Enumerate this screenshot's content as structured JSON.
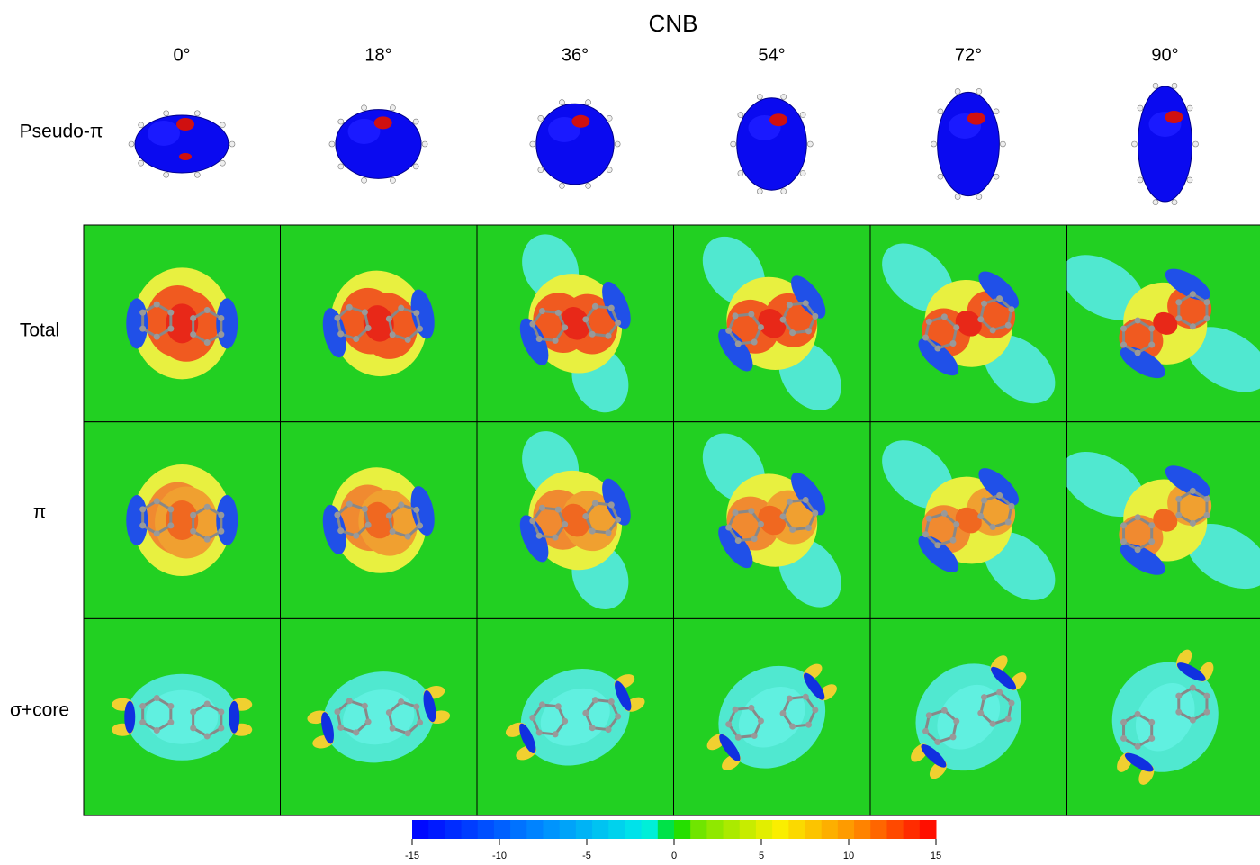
{
  "title": "CNB",
  "angles": [
    "0°",
    "18°",
    "36°",
    "54°",
    "72°",
    "90°"
  ],
  "rows": [
    "Pseudo-π",
    "Total",
    "π",
    "σ+core"
  ],
  "colorbar": {
    "lim": [
      -15,
      15
    ],
    "ticks": [
      -15,
      -10,
      -5,
      0,
      5,
      10,
      15
    ]
  }
}
